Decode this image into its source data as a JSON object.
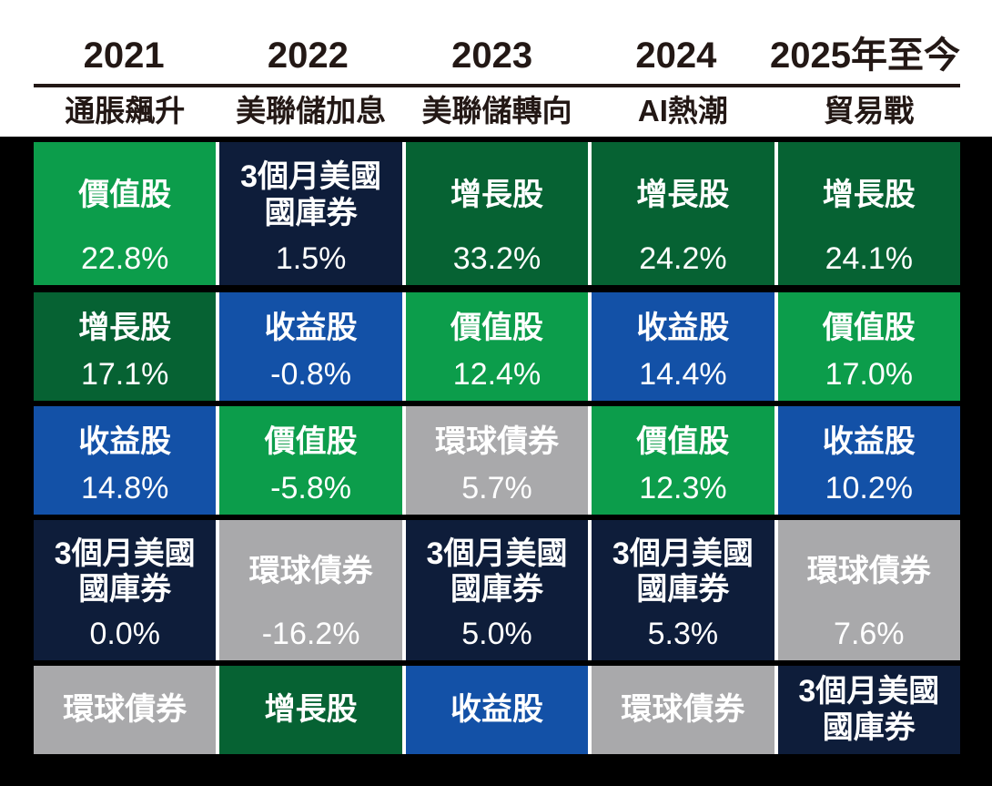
{
  "palette": {
    "value_stock": "#0C9D4B",
    "growth_stock": "#066233",
    "income_stock": "#1351A7",
    "tbill": "#0E1D3A",
    "global_bond": "#A9A9AB",
    "header_text": "#231815",
    "frame": "#000000",
    "cell_text": "#FFFFFF"
  },
  "header": {
    "columns": [
      {
        "year": "2021",
        "event": "通脹飆升"
      },
      {
        "year": "2022",
        "event": "美聯儲加息"
      },
      {
        "year": "2023",
        "event": "美聯儲轉向"
      },
      {
        "year": "2024",
        "event": "AI熱潮"
      },
      {
        "year": "2025年至今",
        "event": "貿易戰"
      }
    ]
  },
  "table": {
    "rows": [
      {
        "cells": [
          {
            "label": "價值股",
            "value": "22.8%",
            "asset": "value_stock"
          },
          {
            "label": "3個月美國\n國庫券",
            "value": "1.5%",
            "asset": "tbill"
          },
          {
            "label": "增長股",
            "value": "33.2%",
            "asset": "growth_stock"
          },
          {
            "label": "增長股",
            "value": "24.2%",
            "asset": "growth_stock"
          },
          {
            "label": "增長股",
            "value": "24.1%",
            "asset": "growth_stock"
          }
        ]
      },
      {
        "cells": [
          {
            "label": "增長股",
            "value": "17.1%",
            "asset": "growth_stock"
          },
          {
            "label": "收益股",
            "value": "-0.8%",
            "asset": "income_stock"
          },
          {
            "label": "價值股",
            "value": "12.4%",
            "asset": "value_stock"
          },
          {
            "label": "收益股",
            "value": "14.4%",
            "asset": "income_stock"
          },
          {
            "label": "價值股",
            "value": "17.0%",
            "asset": "value_stock"
          }
        ]
      },
      {
        "cells": [
          {
            "label": "收益股",
            "value": "14.8%",
            "asset": "income_stock"
          },
          {
            "label": "價值股",
            "value": "-5.8%",
            "asset": "value_stock"
          },
          {
            "label": "環球債券",
            "value": "5.7%",
            "asset": "global_bond"
          },
          {
            "label": "價值股",
            "value": "12.3%",
            "asset": "value_stock"
          },
          {
            "label": "收益股",
            "value": "10.2%",
            "asset": "income_stock"
          }
        ]
      },
      {
        "cells": [
          {
            "label": "3個月美國\n國庫券",
            "value": "0.0%",
            "asset": "tbill"
          },
          {
            "label": "環球債券",
            "value": "-16.2%",
            "asset": "global_bond"
          },
          {
            "label": "3個月美國\n國庫券",
            "value": "5.0%",
            "asset": "tbill"
          },
          {
            "label": "3個月美國\n國庫券",
            "value": "5.3%",
            "asset": "tbill"
          },
          {
            "label": "環球債券",
            "value": "7.6%",
            "asset": "global_bond"
          }
        ]
      },
      {
        "cells": [
          {
            "label": "環球債券",
            "asset": "global_bond"
          },
          {
            "label": "增長股",
            "asset": "growth_stock"
          },
          {
            "label": "收益股",
            "asset": "income_stock"
          },
          {
            "label": "環球債券",
            "asset": "global_bond"
          },
          {
            "label": "3個月美國\n國庫券",
            "asset": "tbill"
          }
        ]
      }
    ]
  },
  "chart_data": {
    "type": "table",
    "columns": [
      {
        "year": "2021",
        "theme": "通脹飆升",
        "ranked": [
          {
            "asset": "價值股",
            "return_pct": 22.8
          },
          {
            "asset": "增長股",
            "return_pct": 17.1
          },
          {
            "asset": "收益股",
            "return_pct": 14.8
          },
          {
            "asset": "3個月美國國庫券",
            "return_pct": 0.0
          },
          {
            "asset": "環球債券",
            "return_pct": null
          }
        ]
      },
      {
        "year": "2022",
        "theme": "美聯儲加息",
        "ranked": [
          {
            "asset": "3個月美國國庫券",
            "return_pct": 1.5
          },
          {
            "asset": "收益股",
            "return_pct": -0.8
          },
          {
            "asset": "價值股",
            "return_pct": -5.8
          },
          {
            "asset": "環球債券",
            "return_pct": -16.2
          },
          {
            "asset": "增長股",
            "return_pct": null
          }
        ]
      },
      {
        "year": "2023",
        "theme": "美聯儲轉向",
        "ranked": [
          {
            "asset": "增長股",
            "return_pct": 33.2
          },
          {
            "asset": "價值股",
            "return_pct": 12.4
          },
          {
            "asset": "環球債券",
            "return_pct": 5.7
          },
          {
            "asset": "3個月美國國庫券",
            "return_pct": 5.0
          },
          {
            "asset": "收益股",
            "return_pct": null
          }
        ]
      },
      {
        "year": "2024",
        "theme": "AI熱潮",
        "ranked": [
          {
            "asset": "增長股",
            "return_pct": 24.2
          },
          {
            "asset": "收益股",
            "return_pct": 14.4
          },
          {
            "asset": "價值股",
            "return_pct": 12.3
          },
          {
            "asset": "3個月美國國庫券",
            "return_pct": 5.3
          },
          {
            "asset": "環球債券",
            "return_pct": null
          }
        ]
      },
      {
        "year": "2025年至今",
        "theme": "貿易戰",
        "ranked": [
          {
            "asset": "增長股",
            "return_pct": 24.1
          },
          {
            "asset": "價值股",
            "return_pct": 17.0
          },
          {
            "asset": "收益股",
            "return_pct": 10.2
          },
          {
            "asset": "環球債券",
            "return_pct": 7.6
          },
          {
            "asset": "3個月美國國庫券",
            "return_pct": null
          }
        ]
      }
    ],
    "asset_colors": {
      "價值股": "#0C9D4B",
      "增長股": "#066233",
      "收益股": "#1351A7",
      "3個月美國國庫券": "#0E1D3A",
      "環球債券": "#A9A9AB"
    },
    "legend_position": "none",
    "grid": false
  }
}
